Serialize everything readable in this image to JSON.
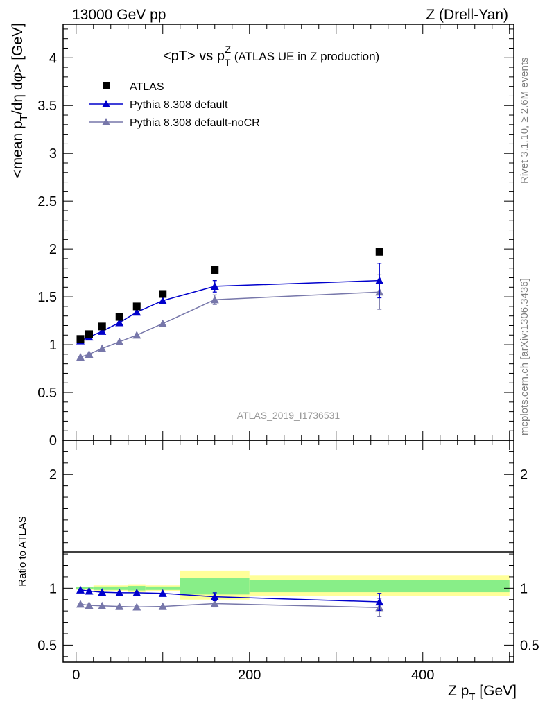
{
  "header": {
    "left": "13000 GeV pp",
    "right": "Z (Drell-Yan)"
  },
  "side": {
    "rivet": "Rivet 3.1.10, ≥ 2.6M events",
    "mcplots": "mcplots.cern.ch [arXiv:1306.3436]"
  },
  "title": {
    "main": "<pT> vs p",
    "sup": "Z",
    "sub": "T",
    "rest": " (ATLAS UE in Z production)"
  },
  "ylabel_main": {
    "a": "<mean p",
    "sub": "T",
    "b": "/dη dφ> [GeV]"
  },
  "ylabel_ratio": "Ratio to ATLAS",
  "xlabel": {
    "a": "Z p",
    "sub": "T",
    "b": " [GeV]"
  },
  "watermark": "ATLAS_2019_I1736531",
  "legend": {
    "atlas": "ATLAS",
    "default": "Pythia 8.308 default",
    "nocr": "Pythia 8.308 default-noCR"
  },
  "colors": {
    "data": "#000000",
    "default": "#0000cc",
    "nocr": "#7777aa",
    "band_outer": "#ffff99",
    "band_inner": "#88ee88"
  },
  "chart_data": [
    {
      "type": "scatter",
      "panel": "main",
      "xlim": [
        -15,
        505
      ],
      "ylim": [
        0,
        4.35
      ],
      "yticks": [
        "0",
        "0.5",
        "1",
        "1.5",
        "2",
        "2.5",
        "3",
        "3.5",
        "4"
      ],
      "series": [
        {
          "name": "ATLAS",
          "x": [
            5,
            15,
            30,
            50,
            70,
            100,
            160,
            350
          ],
          "y": [
            1.06,
            1.11,
            1.19,
            1.29,
            1.4,
            1.53,
            1.78,
            1.97
          ],
          "yerr": [
            0.01,
            0.01,
            0.01,
            0.01,
            0.01,
            0.01,
            0.02,
            0.03
          ]
        },
        {
          "name": "Pythia 8.308 default",
          "x": [
            5,
            15,
            30,
            50,
            70,
            100,
            160,
            350
          ],
          "y": [
            1.04,
            1.08,
            1.14,
            1.23,
            1.34,
            1.46,
            1.61,
            1.67
          ],
          "yerr": [
            0.01,
            0.01,
            0.01,
            0.01,
            0.01,
            0.01,
            0.06,
            0.18
          ]
        },
        {
          "name": "Pythia 8.308 default-noCR",
          "x": [
            5,
            15,
            30,
            50,
            70,
            100,
            160,
            350
          ],
          "y": [
            0.87,
            0.9,
            0.96,
            1.03,
            1.1,
            1.22,
            1.47,
            1.55
          ],
          "yerr": [
            0.01,
            0.01,
            0.01,
            0.01,
            0.01,
            0.01,
            0.05,
            0.18
          ]
        }
      ]
    },
    {
      "type": "line",
      "panel": "ratio",
      "xlim": [
        -15,
        505
      ],
      "ylim": [
        0.35,
        2.3
      ],
      "xticks": [
        0,
        200,
        400
      ],
      "yticks": [
        "0.5",
        "1",
        "2"
      ],
      "bands": [
        {
          "x0": 0,
          "x1": 20,
          "outer": [
            0.985,
            1.015
          ],
          "inner": [
            0.99,
            1.01
          ]
        },
        {
          "x0": 20,
          "x1": 60,
          "outer": [
            0.975,
            1.025
          ],
          "inner": [
            0.985,
            1.015
          ]
        },
        {
          "x0": 60,
          "x1": 80,
          "outer": [
            0.965,
            1.035
          ],
          "inner": [
            0.98,
            1.02
          ]
        },
        {
          "x0": 80,
          "x1": 120,
          "outer": [
            0.975,
            1.025
          ],
          "inner": [
            0.985,
            1.015
          ]
        },
        {
          "x0": 120,
          "x1": 200,
          "outer": [
            0.9,
            1.155
          ],
          "inner": [
            0.945,
            1.09
          ]
        },
        {
          "x0": 200,
          "x1": 500,
          "outer": [
            0.935,
            1.11
          ],
          "inner": [
            0.965,
            1.07
          ]
        }
      ],
      "series": [
        {
          "name": "Pythia 8.308 default",
          "x": [
            5,
            15,
            30,
            50,
            70,
            100,
            160,
            350
          ],
          "y": [
            0.985,
            0.975,
            0.965,
            0.96,
            0.96,
            0.955,
            0.925,
            0.88
          ],
          "yerr": [
            0.01,
            0.01,
            0.01,
            0.01,
            0.01,
            0.01,
            0.035,
            0.075
          ]
        },
        {
          "name": "Pythia 8.308 default-noCR",
          "x": [
            5,
            15,
            30,
            50,
            70,
            100,
            160,
            350
          ],
          "y": [
            0.86,
            0.85,
            0.845,
            0.84,
            0.835,
            0.84,
            0.865,
            0.83
          ],
          "yerr": [
            0.01,
            0.01,
            0.01,
            0.01,
            0.01,
            0.01,
            0.03,
            0.08
          ]
        }
      ]
    }
  ]
}
